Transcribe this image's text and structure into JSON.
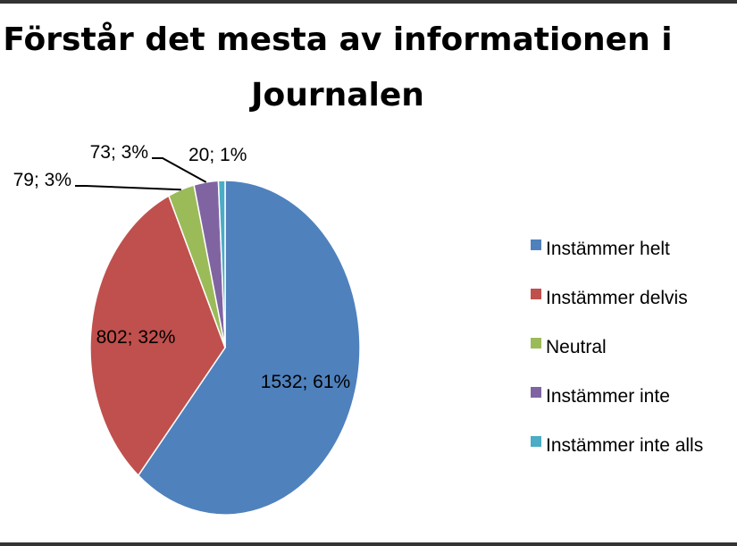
{
  "chart_data": {
    "type": "pie",
    "title_lines": [
      "Förstår det mesta av informationen i",
      "Journalen"
    ],
    "categories": [
      "Instämmer helt",
      "Instämmer delvis",
      "Neutral",
      "Instämmer inte",
      "Instämmer inte alls"
    ],
    "values": [
      1532,
      802,
      79,
      73,
      20
    ],
    "data_labels": [
      "1532; 61%",
      "802; 32%",
      "79; 3%",
      "73; 3%",
      "20; 1%"
    ],
    "colors": [
      "#4F81BD",
      "#C0504D",
      "#9BBB59",
      "#8064A2",
      "#4BACC6"
    ],
    "legend_position": "right",
    "start_angle_deg": 0,
    "direction": "clockwise"
  }
}
